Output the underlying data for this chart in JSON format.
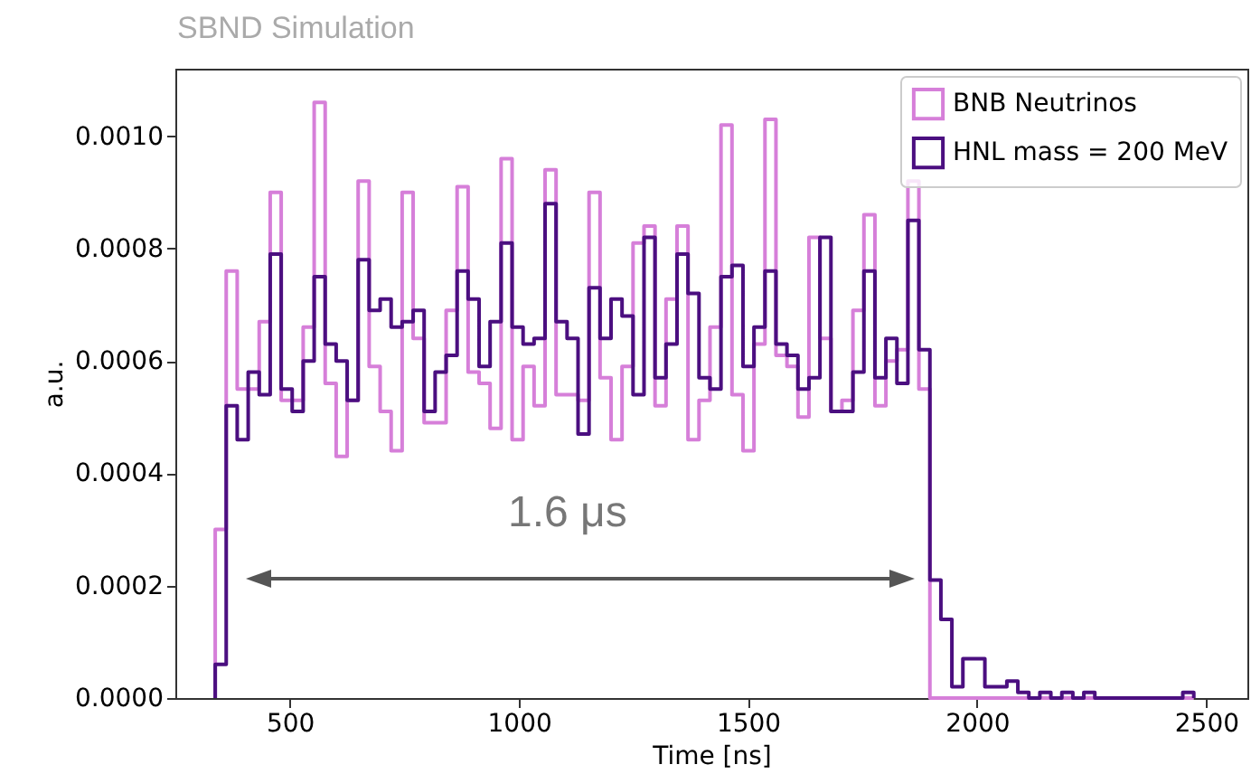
{
  "chart_data": {
    "type": "histogram",
    "title": "SBND Simulation",
    "xlabel": "Time [ns]",
    "ylabel": "a.u.",
    "annotations": [
      "1.6 μs"
    ],
    "bins": [
      337,
      361,
      385,
      409,
      433,
      457,
      481,
      505,
      529,
      553,
      577,
      601,
      625,
      649,
      673,
      697,
      721,
      745,
      769,
      793,
      817,
      841,
      865,
      889,
      913,
      937,
      961,
      985,
      1009,
      1033,
      1057,
      1081,
      1105,
      1129,
      1153,
      1177,
      1201,
      1225,
      1249,
      1273,
      1297,
      1321,
      1345,
      1369,
      1393,
      1417,
      1441,
      1465,
      1489,
      1513,
      1537,
      1561,
      1585,
      1609,
      1633,
      1657,
      1681,
      1705,
      1729,
      1753,
      1777,
      1801,
      1825,
      1849,
      1873,
      1897,
      1921,
      1945,
      1969,
      1993,
      2017,
      2041,
      2065,
      2089,
      2113,
      2137,
      2161,
      2185,
      2209,
      2233,
      2257,
      2281,
      2305,
      2329,
      2353,
      2377,
      2401,
      2425,
      2449,
      2473
    ],
    "series": [
      {
        "name": "BNB Neutrinos",
        "color": "#d67fd9",
        "values": [
          0.0003,
          0.00076,
          0.00055,
          0.00055,
          0.00067,
          0.0009,
          0.00053,
          0.00053,
          0.00066,
          0.00106,
          0.00056,
          0.00043,
          0.00053,
          0.00092,
          0.00059,
          0.00051,
          0.00044,
          0.0009,
          0.00064,
          0.00049,
          0.00049,
          0.00069,
          0.00091,
          0.00058,
          0.00056,
          0.00048,
          0.00096,
          0.00046,
          0.00059,
          0.00052,
          0.00094,
          0.00054,
          0.00054,
          0.00053,
          0.0009,
          0.00057,
          0.00046,
          0.00059,
          0.00081,
          0.00084,
          0.00052,
          0.00071,
          0.00084,
          0.00046,
          0.00053,
          0.00066,
          0.00102,
          0.00054,
          0.00044,
          0.00063,
          0.00103,
          0.00061,
          0.00059,
          0.0005,
          0.00082,
          0.00064,
          0.00051,
          0.00053,
          0.00069,
          0.00086,
          0.00052,
          0.0006,
          0.00062,
          0.00092,
          0.00055,
          0,
          0,
          0,
          0,
          0,
          0,
          0,
          0,
          0,
          0,
          0,
          0,
          0,
          0,
          0,
          0,
          0,
          0,
          0,
          0,
          0,
          0,
          0,
          0
        ]
      },
      {
        "name": "HNL mass = 200 MeV",
        "color": "#4b0f80",
        "values": [
          6e-05,
          0.00052,
          0.00046,
          0.00058,
          0.00054,
          0.00079,
          0.00055,
          0.00051,
          0.0006,
          0.00075,
          0.00063,
          0.0006,
          0.00053,
          0.00078,
          0.00069,
          0.00071,
          0.00066,
          0.00067,
          0.00069,
          0.00051,
          0.00058,
          0.00061,
          0.00076,
          0.00071,
          0.00059,
          0.00067,
          0.00081,
          0.00066,
          0.00063,
          0.00064,
          0.00088,
          0.00067,
          0.00064,
          0.00047,
          0.00073,
          0.00064,
          0.00071,
          0.00068,
          0.00054,
          0.00082,
          0.00057,
          0.00063,
          0.00079,
          0.00072,
          0.00057,
          0.00055,
          0.00075,
          0.00077,
          0.00059,
          0.00066,
          0.00076,
          0.00063,
          0.00061,
          0.00055,
          0.00057,
          0.00082,
          0.00051,
          0.00051,
          0.00058,
          0.00076,
          0.00057,
          0.00064,
          0.00056,
          0.00085,
          0.00062,
          0.00021,
          0.00014,
          2e-05,
          7e-05,
          7e-05,
          2e-05,
          2e-05,
          3e-05,
          1e-05,
          0,
          1e-05,
          0,
          1e-05,
          0,
          1e-05,
          0,
          0,
          0,
          0,
          0,
          0,
          0,
          0,
          1e-05
        ]
      }
    ],
    "xlim": [
      250,
      2590
    ],
    "xticks": [
      500,
      1000,
      1500,
      2000,
      2500
    ],
    "ylim": [
      0,
      0.00112
    ],
    "yticks": [
      {
        "value": 0,
        "label": "0.0000"
      },
      {
        "value": 0.0002,
        "label": "0.0002"
      },
      {
        "value": 0.0004,
        "label": "0.0004"
      },
      {
        "value": 0.0006,
        "label": "0.0006"
      },
      {
        "value": 0.0008,
        "label": "0.0008"
      },
      {
        "value": 0.001,
        "label": "0.0010"
      }
    ],
    "legend": "top right"
  }
}
